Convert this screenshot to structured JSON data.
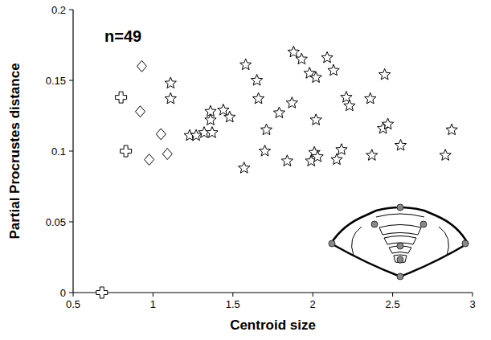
{
  "chart_data": {
    "type": "scatter",
    "annotation": "n=49",
    "x_label": "Centroid size",
    "y_label": "Partial Procrustes distance",
    "xlim": [
      0.5,
      3
    ],
    "ylim": [
      0,
      0.2
    ],
    "xticks": [
      0.5,
      1,
      1.5,
      2,
      2.5,
      3
    ],
    "yticks": [
      0,
      0.05,
      0.1,
      0.15,
      0.2
    ],
    "grid": false,
    "series": [
      {
        "marker": "cross",
        "color": "#000000",
        "x": [
          0.68,
          0.8,
          0.83
        ],
        "values": [
          0.0,
          0.138,
          0.1
        ]
      },
      {
        "marker": "diamond",
        "color": "#000000",
        "x": [
          0.93,
          0.92,
          0.976,
          1.05,
          1.09
        ],
        "values": [
          0.16,
          0.128,
          0.094,
          0.112,
          0.098
        ]
      },
      {
        "marker": "star",
        "color": "#000000",
        "x": [
          1.11,
          1.11,
          1.23,
          1.27,
          1.32,
          1.36,
          1.36,
          1.37,
          1.44,
          1.48,
          1.58,
          1.57,
          1.65,
          1.66,
          1.7,
          1.71,
          1.79,
          1.84,
          1.87,
          1.88,
          1.93,
          1.98,
          1.99,
          2.01,
          2.02,
          2.02,
          2.03,
          2.09,
          2.13,
          2.15,
          2.18,
          2.21,
          2.23,
          2.36,
          2.37,
          2.44,
          2.45,
          2.47,
          2.55,
          2.83,
          2.87
        ],
        "values": [
          0.148,
          0.137,
          0.111,
          0.111,
          0.113,
          0.128,
          0.122,
          0.113,
          0.129,
          0.124,
          0.161,
          0.088,
          0.15,
          0.137,
          0.1,
          0.115,
          0.127,
          0.093,
          0.134,
          0.17,
          0.165,
          0.155,
          0.093,
          0.099,
          0.122,
          0.152,
          0.096,
          0.166,
          0.157,
          0.094,
          0.101,
          0.138,
          0.132,
          0.137,
          0.097,
          0.116,
          0.154,
          0.119,
          0.104,
          0.097,
          0.115
        ]
      }
    ]
  }
}
